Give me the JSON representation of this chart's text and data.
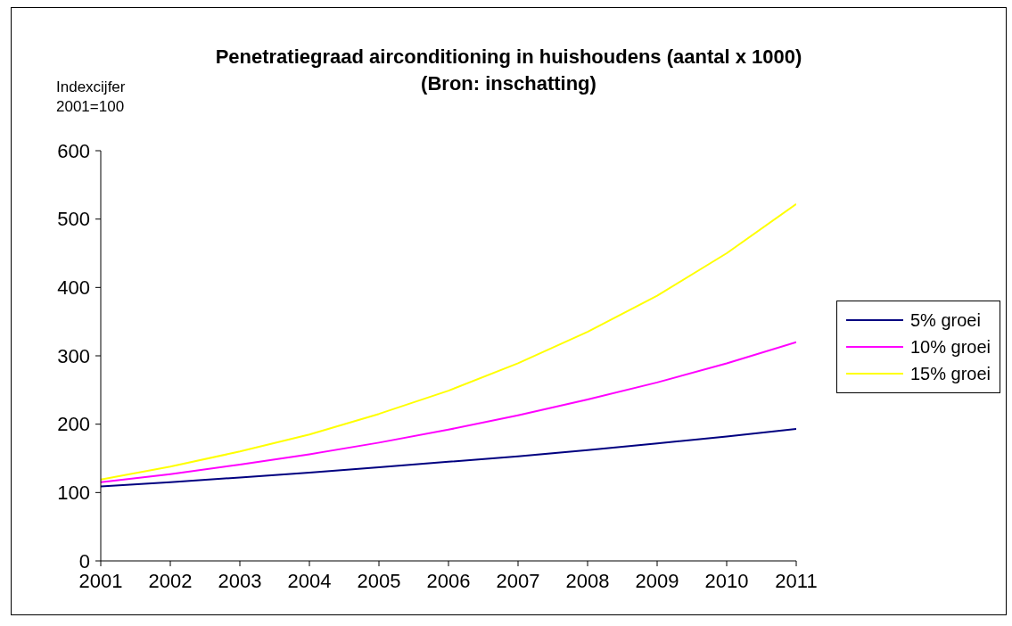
{
  "chart_data": {
    "type": "line",
    "title": "Penetratiegraad airconditioning in huishoudens (aantal x 1000)",
    "subtitle": "(Bron: inschatting)",
    "ylabel": "Indexcijfer 2001=100",
    "x": [
      2001,
      2002,
      2003,
      2004,
      2005,
      2006,
      2007,
      2008,
      2009,
      2010,
      2011
    ],
    "series": [
      {
        "name": "5% groei",
        "color": "#000080",
        "values": [
          109,
          115,
          122,
          129,
          137,
          145,
          153,
          162,
          172,
          182,
          193
        ]
      },
      {
        "name": "10% groei",
        "color": "#ff00ff",
        "values": [
          115,
          127,
          141,
          156,
          173,
          192,
          213,
          236,
          261,
          289,
          320
        ]
      },
      {
        "name": "15% groei",
        "color": "#ffff00",
        "values": [
          119,
          138,
          160,
          185,
          215,
          249,
          289,
          335,
          388,
          450,
          522
        ]
      }
    ],
    "xlim": [
      2001,
      2011
    ],
    "xticks": [
      2001,
      2002,
      2003,
      2004,
      2005,
      2006,
      2007,
      2008,
      2009,
      2010,
      2011
    ],
    "ylim": [
      0,
      600
    ],
    "yticks": [
      0,
      100,
      200,
      300,
      400,
      500,
      600
    ],
    "grid": false,
    "legend": "right",
    "marker": "none",
    "line_style": "solid"
  }
}
